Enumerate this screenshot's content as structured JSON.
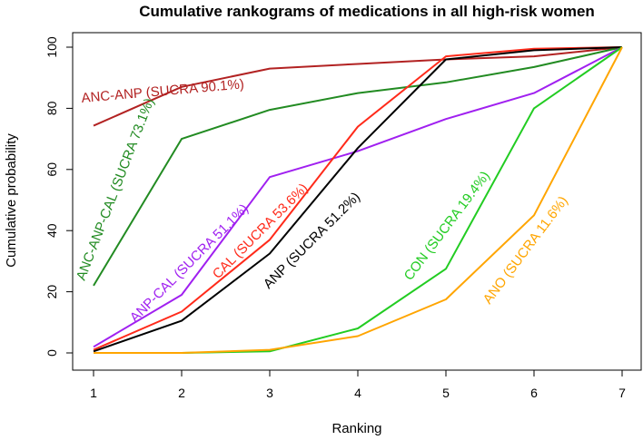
{
  "chart_data": {
    "type": "line",
    "title": "Cumulative rankograms of medications in all high-risk women",
    "xlabel": "Ranking",
    "ylabel": "Cumulative probability",
    "x": [
      1,
      2,
      3,
      4,
      5,
      6,
      7
    ],
    "xlim": [
      1,
      7
    ],
    "ylim": [
      0,
      100
    ],
    "xticks": [
      1,
      2,
      3,
      4,
      5,
      6,
      7
    ],
    "yticks": [
      0,
      20,
      40,
      60,
      80,
      100
    ],
    "grid": false,
    "series": [
      {
        "name": "ANC-ANP",
        "label": "ANC-ANP (SUCRA 90.1%)",
        "color": "#b22222",
        "values": [
          74.3,
          87.0,
          93.0,
          94.5,
          96.0,
          97.0,
          100
        ]
      },
      {
        "name": "ANC-ANP-CAL",
        "label": "ANC-ANP-CAL (SUCRA 73.1%)",
        "color": "#228b22",
        "values": [
          22.0,
          70.0,
          79.5,
          85.0,
          88.5,
          93.5,
          100
        ]
      },
      {
        "name": "ANP-CAL",
        "label": "ANP-CAL (SUCRA 51.1%)",
        "color": "#a020f0",
        "values": [
          2.0,
          19.0,
          57.5,
          66.0,
          76.5,
          85.0,
          100
        ]
      },
      {
        "name": "CAL",
        "label": "CAL (SUCRA 53.6%)",
        "color": "#ff2a1a",
        "values": [
          1.0,
          13.5,
          37.0,
          74.0,
          97.0,
          99.5,
          100
        ]
      },
      {
        "name": "ANP",
        "label": "ANP (SUCRA 51.2%)",
        "color": "#000000",
        "values": [
          0.5,
          10.5,
          32.5,
          67.0,
          96.0,
          99.0,
          100
        ]
      },
      {
        "name": "CON",
        "label": "CON (SUCRA 19.4%)",
        "color": "#22cc22",
        "values": [
          0,
          0,
          0.5,
          8.0,
          27.5,
          80.0,
          100
        ]
      },
      {
        "name": "ANO",
        "label": "ANO (SUCRA 11.6%)",
        "color": "#ffa500",
        "values": [
          0,
          0,
          1.0,
          5.5,
          17.5,
          45.0,
          100
        ]
      }
    ]
  }
}
